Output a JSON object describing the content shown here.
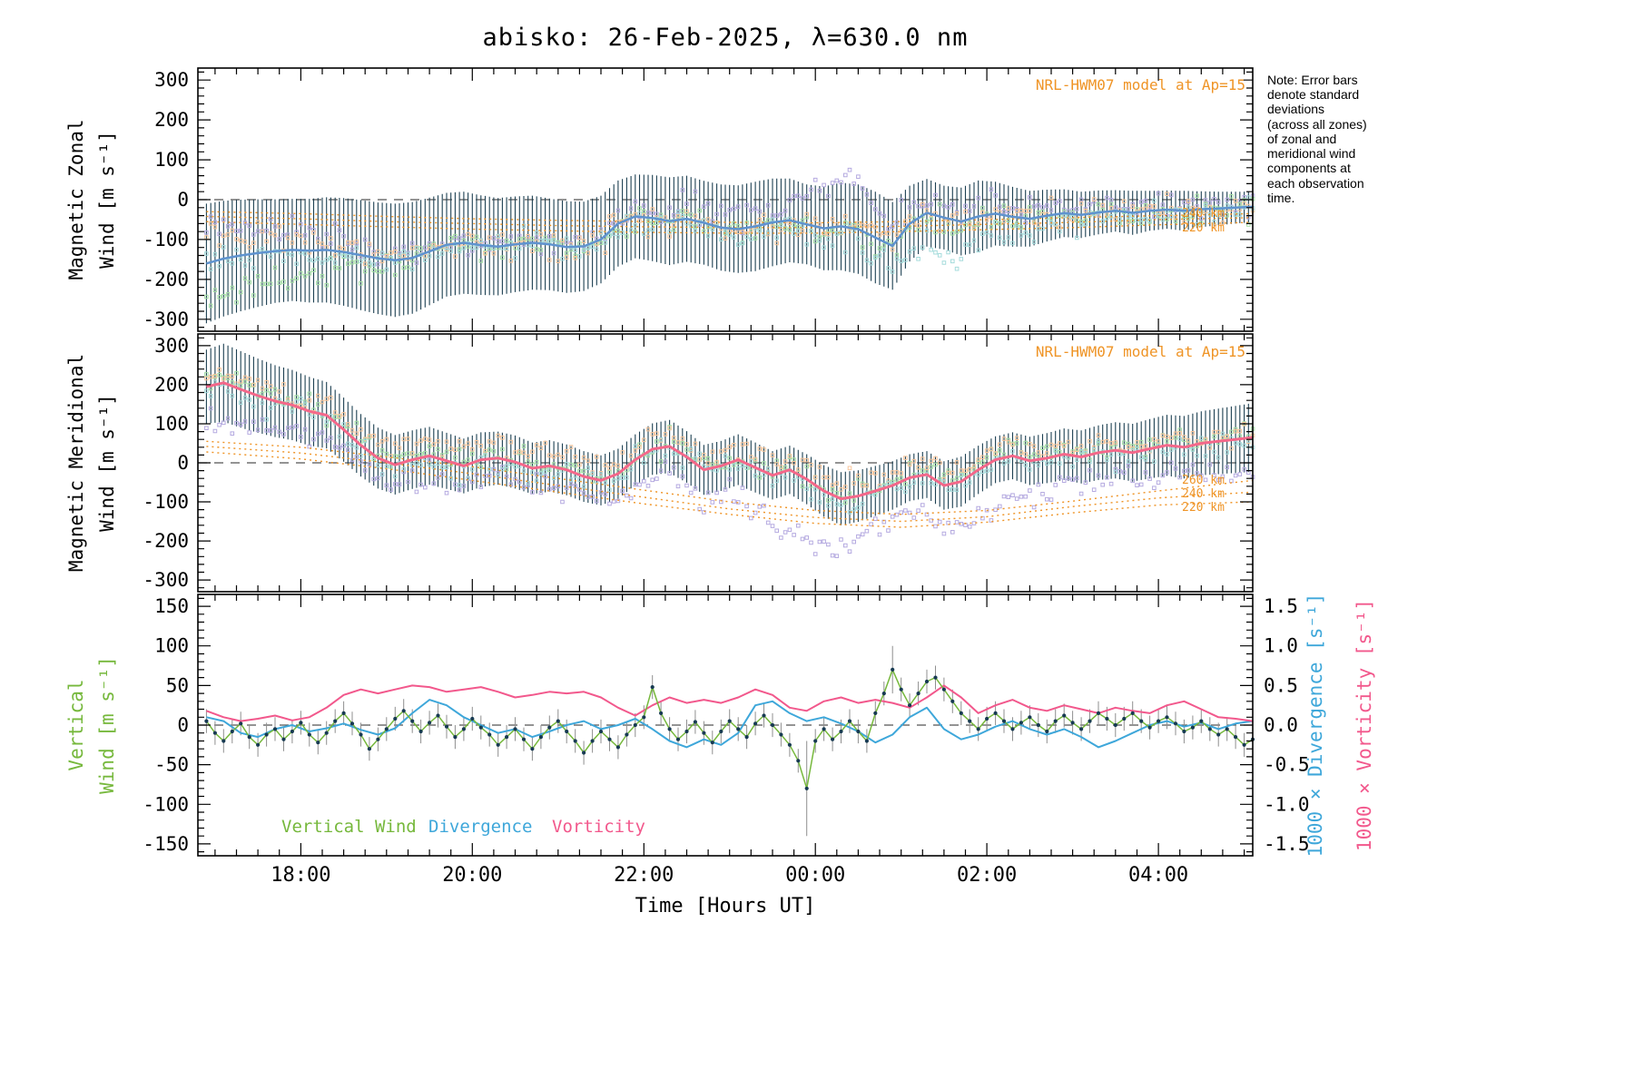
{
  "window": {
    "title": "abisko: 26-Feb-2025, λ=630.0 nm"
  },
  "note": "Note: Error bars\ndenote standard\ndeviations\n(across all zones)\nof zonal and\nmeridional wind\ncomponents at\neach observation\ntime.",
  "legend": {
    "vertical_wind": "Vertical Wind",
    "divergence": "Divergence",
    "vorticity": "Vorticity"
  },
  "colors": {
    "zonal_line": "#5f93cf",
    "meridional_line": "#f4688a",
    "vertical_line": "#76b83c",
    "divergence_line": "#3ea7da",
    "vorticity_line": "#f2588c",
    "model_line": "#ef9426",
    "error_bar": "#1d4052",
    "error_bar_bottom": "#8f8f8f",
    "dot": "#173a52",
    "zero_line": "#555555",
    "frame": "#000000"
  },
  "x_axis": {
    "label": "Time [Hours UT]",
    "range": [
      16.8,
      29.1
    ],
    "minor_step": 0.25,
    "major_ticks": [
      {
        "t": 18,
        "label": "18:00"
      },
      {
        "t": 20,
        "label": "20:00"
      },
      {
        "t": 22,
        "label": "22:00"
      },
      {
        "t": 24,
        "label": "00:00"
      },
      {
        "t": 26,
        "label": "02:00"
      },
      {
        "t": 28,
        "label": "04:00"
      }
    ]
  },
  "scatter": {
    "step_hours": 0.05,
    "noise_sd": 16,
    "seed": 20250226,
    "zones": [
      {
        "name": "zone-nw",
        "color": "#b5aae0",
        "zonal_offset": {
          "t": [
            16.9,
            18,
            19,
            20,
            21.5,
            22.5,
            23.5,
            24.4,
            25,
            26,
            27,
            28,
            29.1
          ],
          "v": [
            85,
            45,
            10,
            0,
            10,
            30,
            40,
            120,
            40,
            30,
            20,
            15,
            10
          ]
        },
        "merid_offset": {
          "t": [
            16.9,
            18,
            19,
            21,
            23,
            23.9,
            24.3,
            25,
            25.8,
            26.5,
            27,
            28,
            29.1
          ],
          "v": [
            -90,
            -60,
            -50,
            -45,
            -80,
            -170,
            -120,
            -80,
            -130,
            -90,
            -60,
            -70,
            -90
          ]
        }
      },
      {
        "name": "zone-ne",
        "color": "#a6e0a6",
        "zonal_offset": {
          "t": [
            16.9,
            18,
            19,
            20,
            22,
            24,
            25,
            26,
            29.1
          ],
          "v": [
            -100,
            -60,
            -20,
            0,
            0,
            -10,
            -15,
            -10,
            0
          ]
        },
        "merid_offset": {
          "t": [
            16.9,
            18,
            20,
            22,
            24,
            26,
            29.1
          ],
          "v": [
            20,
            15,
            10,
            5,
            10,
            15,
            10
          ]
        }
      },
      {
        "name": "zone-se",
        "color": "#f8c79e",
        "zonal_offset": {
          "t": [
            16.9,
            18,
            19,
            20,
            22,
            24,
            25,
            26,
            29.1
          ],
          "v": [
            60,
            30,
            10,
            0,
            -5,
            0,
            5,
            0,
            0
          ]
        },
        "merid_offset": {
          "t": [
            16.9,
            18,
            20,
            22,
            24,
            26,
            29.1
          ],
          "v": [
            30,
            25,
            45,
            30,
            35,
            25,
            15
          ]
        }
      },
      {
        "name": "zone-sw",
        "color": "#a6dcdc",
        "zonal_offset": {
          "t": [
            16.9,
            18,
            19,
            20,
            22,
            24,
            25,
            25.6,
            26,
            27,
            29.1
          ],
          "v": [
            0,
            -10,
            0,
            -5,
            -10,
            -20,
            -60,
            -110,
            -50,
            -15,
            -10
          ]
        },
        "merid_offset": {
          "t": [
            16.9,
            18,
            20,
            22,
            24,
            26,
            29.1
          ],
          "v": [
            -10,
            -5,
            -15,
            -10,
            -15,
            -5,
            -10
          ]
        }
      }
    ]
  },
  "chart_data": [
    {
      "type": "line",
      "name": "magnetic-zonal-wind",
      "ylabel_lines": [
        "Magnetic Zonal",
        "Wind [m s⁻¹]"
      ],
      "ylim": [
        -330,
        330
      ],
      "yticks": [
        300,
        200,
        100,
        0,
        -100,
        -200,
        -300
      ],
      "y_minor_step": 20,
      "x_start": 16.9,
      "x_step": 0.2,
      "mean_wind": {
        "values": [
          -160,
          -148,
          -140,
          -134,
          -129,
          -126,
          -128,
          -126,
          -131,
          -139,
          -147,
          -152,
          -146,
          -130,
          -113,
          -108,
          -114,
          -118,
          -112,
          -108,
          -112,
          -119,
          -117,
          -100,
          -60,
          -42,
          -46,
          -54,
          -48,
          -58,
          -70,
          -74,
          -67,
          -57,
          -52,
          -62,
          -72,
          -67,
          -74,
          -95,
          -116,
          -60,
          -33,
          -45,
          -55,
          -42,
          -35,
          -43,
          -48,
          -40,
          -34,
          -38,
          -32,
          -28,
          -33,
          -28,
          -25,
          -28,
          -24,
          -22,
          -20,
          -18
        ],
        "errors": [
          150,
          145,
          140,
          135,
          130,
          128,
          130,
          132,
          135,
          138,
          140,
          142,
          140,
          135,
          130,
          128,
          125,
          122,
          120,
          118,
          115,
          115,
          112,
          110,
          108,
          105,
          108,
          110,
          108,
          105,
          108,
          110,
          112,
          110,
          105,
          100,
          105,
          110,
          112,
          115,
          110,
          95,
          85,
          80,
          85,
          90,
          80,
          75,
          70,
          65,
          60,
          58,
          55,
          52,
          55,
          50,
          48,
          50,
          45,
          42,
          40,
          38
        ]
      },
      "model": {
        "label": "NRL-HWM07 model at Ap=15",
        "altitude_labels": [
          "240 km",
          "220 km"
        ],
        "t": [
          16.9,
          18,
          19,
          20,
          21,
          22,
          23,
          24,
          25,
          26,
          27,
          28,
          29.1
        ],
        "series": [
          {
            "name": "260 km",
            "values": [
              -30,
              -35,
              -42,
              -48,
              -52,
              -55,
              -57,
              -58,
              -55,
              -50,
              -45,
              -40,
              -35
            ]
          },
          {
            "name": "240 km",
            "values": [
              -42,
              -48,
              -55,
              -60,
              -65,
              -68,
              -70,
              -70,
              -67,
              -62,
              -57,
              -50,
              -45
            ]
          },
          {
            "name": "220 km",
            "values": [
              -55,
              -62,
              -68,
              -74,
              -78,
              -82,
              -84,
              -84,
              -80,
              -75,
              -70,
              -63,
              -57
            ]
          }
        ]
      }
    },
    {
      "type": "line",
      "name": "magnetic-meridional-wind",
      "ylabel_lines": [
        "Magnetic Meridional",
        "Wind [m s⁻¹]"
      ],
      "ylim": [
        -330,
        330
      ],
      "yticks": [
        300,
        200,
        100,
        0,
        -100,
        -200,
        -300
      ],
      "y_minor_step": 20,
      "x_start": 16.9,
      "x_step": 0.2,
      "mean_wind": {
        "values": [
          195,
          205,
          188,
          172,
          158,
          148,
          132,
          122,
          85,
          45,
          12,
          -5,
          8,
          18,
          5,
          -8,
          8,
          12,
          2,
          -14,
          -8,
          -18,
          -35,
          -45,
          -28,
          8,
          35,
          42,
          15,
          -18,
          -8,
          8,
          -12,
          -32,
          -18,
          -42,
          -72,
          -92,
          -85,
          -72,
          -58,
          -38,
          -30,
          -58,
          -48,
          -18,
          8,
          18,
          5,
          12,
          22,
          15,
          26,
          32,
          26,
          36,
          45,
          40,
          50,
          55,
          60,
          65
        ],
        "errors": [
          95,
          100,
          98,
          95,
          92,
          90,
          88,
          85,
          82,
          80,
          78,
          76,
          75,
          74,
          72,
          70,
          70,
          68,
          68,
          66,
          66,
          65,
          65,
          64,
          64,
          65,
          66,
          68,
          66,
          64,
          64,
          65,
          64,
          62,
          62,
          64,
          66,
          68,
          66,
          64,
          62,
          60,
          60,
          62,
          64,
          62,
          60,
          60,
          62,
          64,
          66,
          68,
          70,
          72,
          74,
          76,
          78,
          80,
          82,
          84,
          86,
          88
        ]
      },
      "model": {
        "label": "NRL-HWM07 model at Ap=15",
        "altitude_labels": [
          "260 km",
          "240 km",
          "220 km"
        ],
        "t": [
          16.9,
          18,
          19,
          20,
          21,
          22,
          23,
          24,
          25,
          26,
          27,
          28,
          29.1
        ],
        "series": [
          {
            "name": "260 km",
            "values": [
              55,
              40,
              15,
              -10,
              -40,
              -70,
              -100,
              -122,
              -132,
              -122,
              -98,
              -72,
              -45
            ]
          },
          {
            "name": "240 km",
            "values": [
              42,
              25,
              0,
              -28,
              -58,
              -88,
              -118,
              -140,
              -150,
              -138,
              -112,
              -90,
              -75
            ]
          },
          {
            "name": "220 km",
            "values": [
              28,
              10,
              -15,
              -45,
              -75,
              -105,
              -132,
              -155,
              -165,
              -152,
              -128,
              -108,
              -100
            ]
          }
        ]
      }
    },
    {
      "type": "line",
      "name": "vertical-wind-divergence-vorticity",
      "ylabel_lines": [
        "Vertical",
        "Wind [m s⁻¹]"
      ],
      "ylim": [
        -165,
        165
      ],
      "yticks": [
        150,
        100,
        50,
        0,
        -50,
        -100,
        -150
      ],
      "y_minor_step": 10,
      "right_ylim": [
        -1.65,
        1.65
      ],
      "right_yticks": [
        "1.5",
        "1.0",
        "0.5",
        "0.0",
        "-0.5",
        "-1.0",
        "-1.5"
      ],
      "right_labels": [
        {
          "text": "1000 × Divergence [s⁻¹]"
        },
        {
          "text": "1000 × Vorticity [s⁻¹]"
        }
      ],
      "vertical_wind": {
        "x_start": 16.9,
        "x_step": 0.1,
        "error_default": 15,
        "error_overrides": {
          "70": 60,
          "80": 30
        },
        "values": [
          5,
          -10,
          -20,
          -8,
          2,
          -15,
          -25,
          -12,
          -5,
          -18,
          -8,
          3,
          -12,
          -22,
          -10,
          5,
          15,
          2,
          -12,
          -30,
          -18,
          -5,
          8,
          18,
          5,
          -8,
          3,
          12,
          -2,
          -15,
          -5,
          8,
          -3,
          -12,
          -25,
          -15,
          -5,
          -18,
          -30,
          -15,
          -3,
          5,
          -8,
          -20,
          -35,
          -20,
          -8,
          -18,
          -28,
          -12,
          0,
          10,
          48,
          15,
          -5,
          -18,
          -8,
          4,
          -10,
          -22,
          -8,
          5,
          -5,
          -15,
          2,
          12,
          0,
          -12,
          -25,
          -45,
          -80,
          -20,
          -5,
          -18,
          -8,
          5,
          -8,
          -20,
          15,
          40,
          70,
          45,
          25,
          40,
          55,
          60,
          45,
          30,
          15,
          5,
          -5,
          8,
          15,
          5,
          -5,
          3,
          10,
          0,
          -8,
          5,
          12,
          3,
          -5,
          5,
          15,
          8,
          0,
          8,
          15,
          5,
          -3,
          5,
          10,
          2,
          -8,
          -3,
          5,
          -5,
          -12,
          -5,
          -15,
          -25,
          -18
        ]
      },
      "divergence": {
        "x_start": 16.9,
        "x_step": 0.2,
        "values": [
          0.1,
          0.05,
          -0.1,
          -0.15,
          -0.05,
          0.0,
          -0.08,
          -0.04,
          0.02,
          -0.06,
          -0.12,
          -0.04,
          0.15,
          0.32,
          0.25,
          0.1,
          0.0,
          -0.1,
          -0.05,
          -0.15,
          -0.08,
          0.0,
          0.05,
          -0.05,
          0.0,
          0.08,
          -0.05,
          -0.2,
          -0.28,
          -0.18,
          -0.25,
          -0.1,
          0.25,
          0.3,
          0.15,
          0.05,
          0.1,
          0.02,
          -0.08,
          -0.22,
          -0.12,
          0.1,
          0.22,
          -0.05,
          -0.18,
          -0.12,
          -0.02,
          0.05,
          -0.05,
          -0.12,
          -0.05,
          -0.15,
          -0.28,
          -0.2,
          -0.1,
          0.0,
          0.05,
          -0.02,
          0.03,
          -0.05,
          0.02,
          0.05
        ]
      },
      "vorticity": {
        "x_start": 16.9,
        "x_step": 0.2,
        "values": [
          0.18,
          0.1,
          0.05,
          0.08,
          0.12,
          0.06,
          0.1,
          0.22,
          0.38,
          0.45,
          0.4,
          0.45,
          0.5,
          0.48,
          0.42,
          0.45,
          0.48,
          0.42,
          0.35,
          0.38,
          0.42,
          0.4,
          0.42,
          0.35,
          0.22,
          0.12,
          0.25,
          0.35,
          0.28,
          0.32,
          0.28,
          0.35,
          0.45,
          0.38,
          0.22,
          0.18,
          0.3,
          0.35,
          0.28,
          0.32,
          0.28,
          0.22,
          0.35,
          0.5,
          0.35,
          0.15,
          0.25,
          0.32,
          0.22,
          0.18,
          0.25,
          0.2,
          0.15,
          0.22,
          0.18,
          0.15,
          0.25,
          0.3,
          0.2,
          0.1,
          0.08,
          0.05
        ]
      }
    }
  ]
}
